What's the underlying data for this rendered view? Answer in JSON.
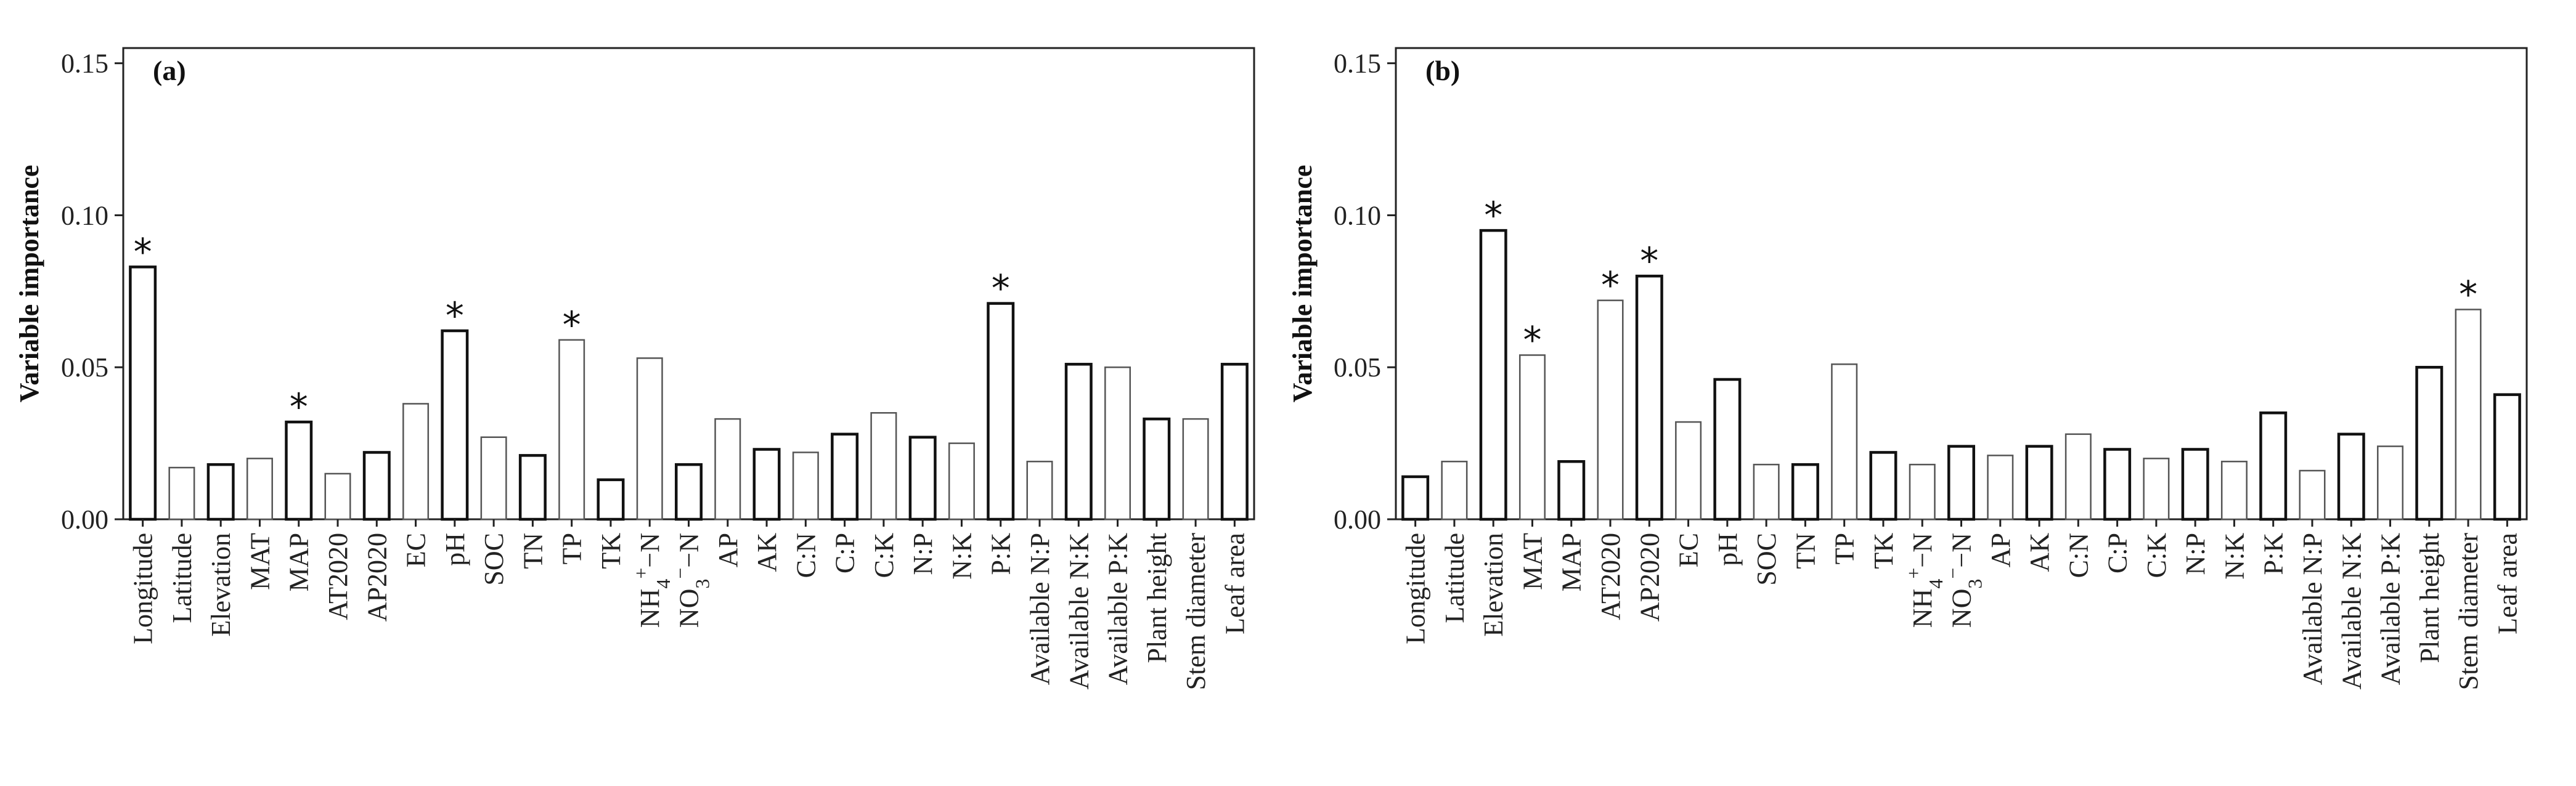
{
  "chart_data": [
    {
      "type": "bar",
      "panel_label": "(a)",
      "ylabel": "Variable importance",
      "ylim": [
        0,
        0.155
      ],
      "yticks": [
        "0.00",
        "0.05",
        "0.10",
        "0.15"
      ],
      "ytick_values": [
        0,
        0.05,
        0.1,
        0.15
      ],
      "categories": [
        "Longitude",
        "Latitude",
        "Elevation",
        "MAT",
        "MAP",
        "AT2020",
        "AP2020",
        "EC",
        "pH",
        "SOC",
        "TN",
        "TP",
        "TK",
        "NH4+−N",
        "NO3−−N",
        "AP",
        "AK",
        "C:N",
        "C:P",
        "C:K",
        "N:P",
        "N:K",
        "P:K",
        "Available N:P",
        "Available N:K",
        "Available P:K",
        "Plant height",
        "Stem diameter",
        "Leaf area"
      ],
      "values": [
        0.083,
        0.017,
        0.018,
        0.02,
        0.032,
        0.015,
        0.022,
        0.038,
        0.062,
        0.027,
        0.021,
        0.059,
        0.013,
        0.053,
        0.018,
        0.033,
        0.023,
        0.022,
        0.028,
        0.035,
        0.027,
        0.025,
        0.071,
        0.019,
        0.051,
        0.05,
        0.033,
        0.033,
        0.051
      ],
      "significant": [
        true,
        false,
        false,
        false,
        true,
        false,
        false,
        false,
        true,
        false,
        false,
        true,
        false,
        false,
        false,
        false,
        false,
        false,
        false,
        false,
        false,
        false,
        true,
        false,
        false,
        false,
        false,
        false,
        false
      ],
      "significance_marker": "*"
    },
    {
      "type": "bar",
      "panel_label": "(b)",
      "ylabel": "Variable importance",
      "ylim": [
        0,
        0.155
      ],
      "yticks": [
        "0.00",
        "0.05",
        "0.10",
        "0.15"
      ],
      "ytick_values": [
        0,
        0.05,
        0.1,
        0.15
      ],
      "categories": [
        "Longitude",
        "Latitude",
        "Elevation",
        "MAT",
        "MAP",
        "AT2020",
        "AP2020",
        "EC",
        "pH",
        "SOC",
        "TN",
        "TP",
        "TK",
        "NH4+−N",
        "NO3−−N",
        "AP",
        "AK",
        "C:N",
        "C:P",
        "C:K",
        "N:P",
        "N:K",
        "P:K",
        "Available N:P",
        "Available N:K",
        "Available P:K",
        "Plant height",
        "Stem diameter",
        "Leaf area"
      ],
      "values": [
        0.014,
        0.019,
        0.095,
        0.054,
        0.019,
        0.072,
        0.08,
        0.032,
        0.046,
        0.018,
        0.018,
        0.051,
        0.022,
        0.018,
        0.024,
        0.021,
        0.024,
        0.028,
        0.023,
        0.02,
        0.023,
        0.019,
        0.035,
        0.016,
        0.028,
        0.024,
        0.05,
        0.069,
        0.041
      ],
      "significant": [
        false,
        false,
        true,
        true,
        false,
        true,
        true,
        false,
        false,
        false,
        false,
        false,
        false,
        false,
        false,
        false,
        false,
        false,
        false,
        false,
        false,
        false,
        false,
        false,
        false,
        false,
        false,
        true,
        false
      ],
      "significance_marker": "*"
    }
  ]
}
